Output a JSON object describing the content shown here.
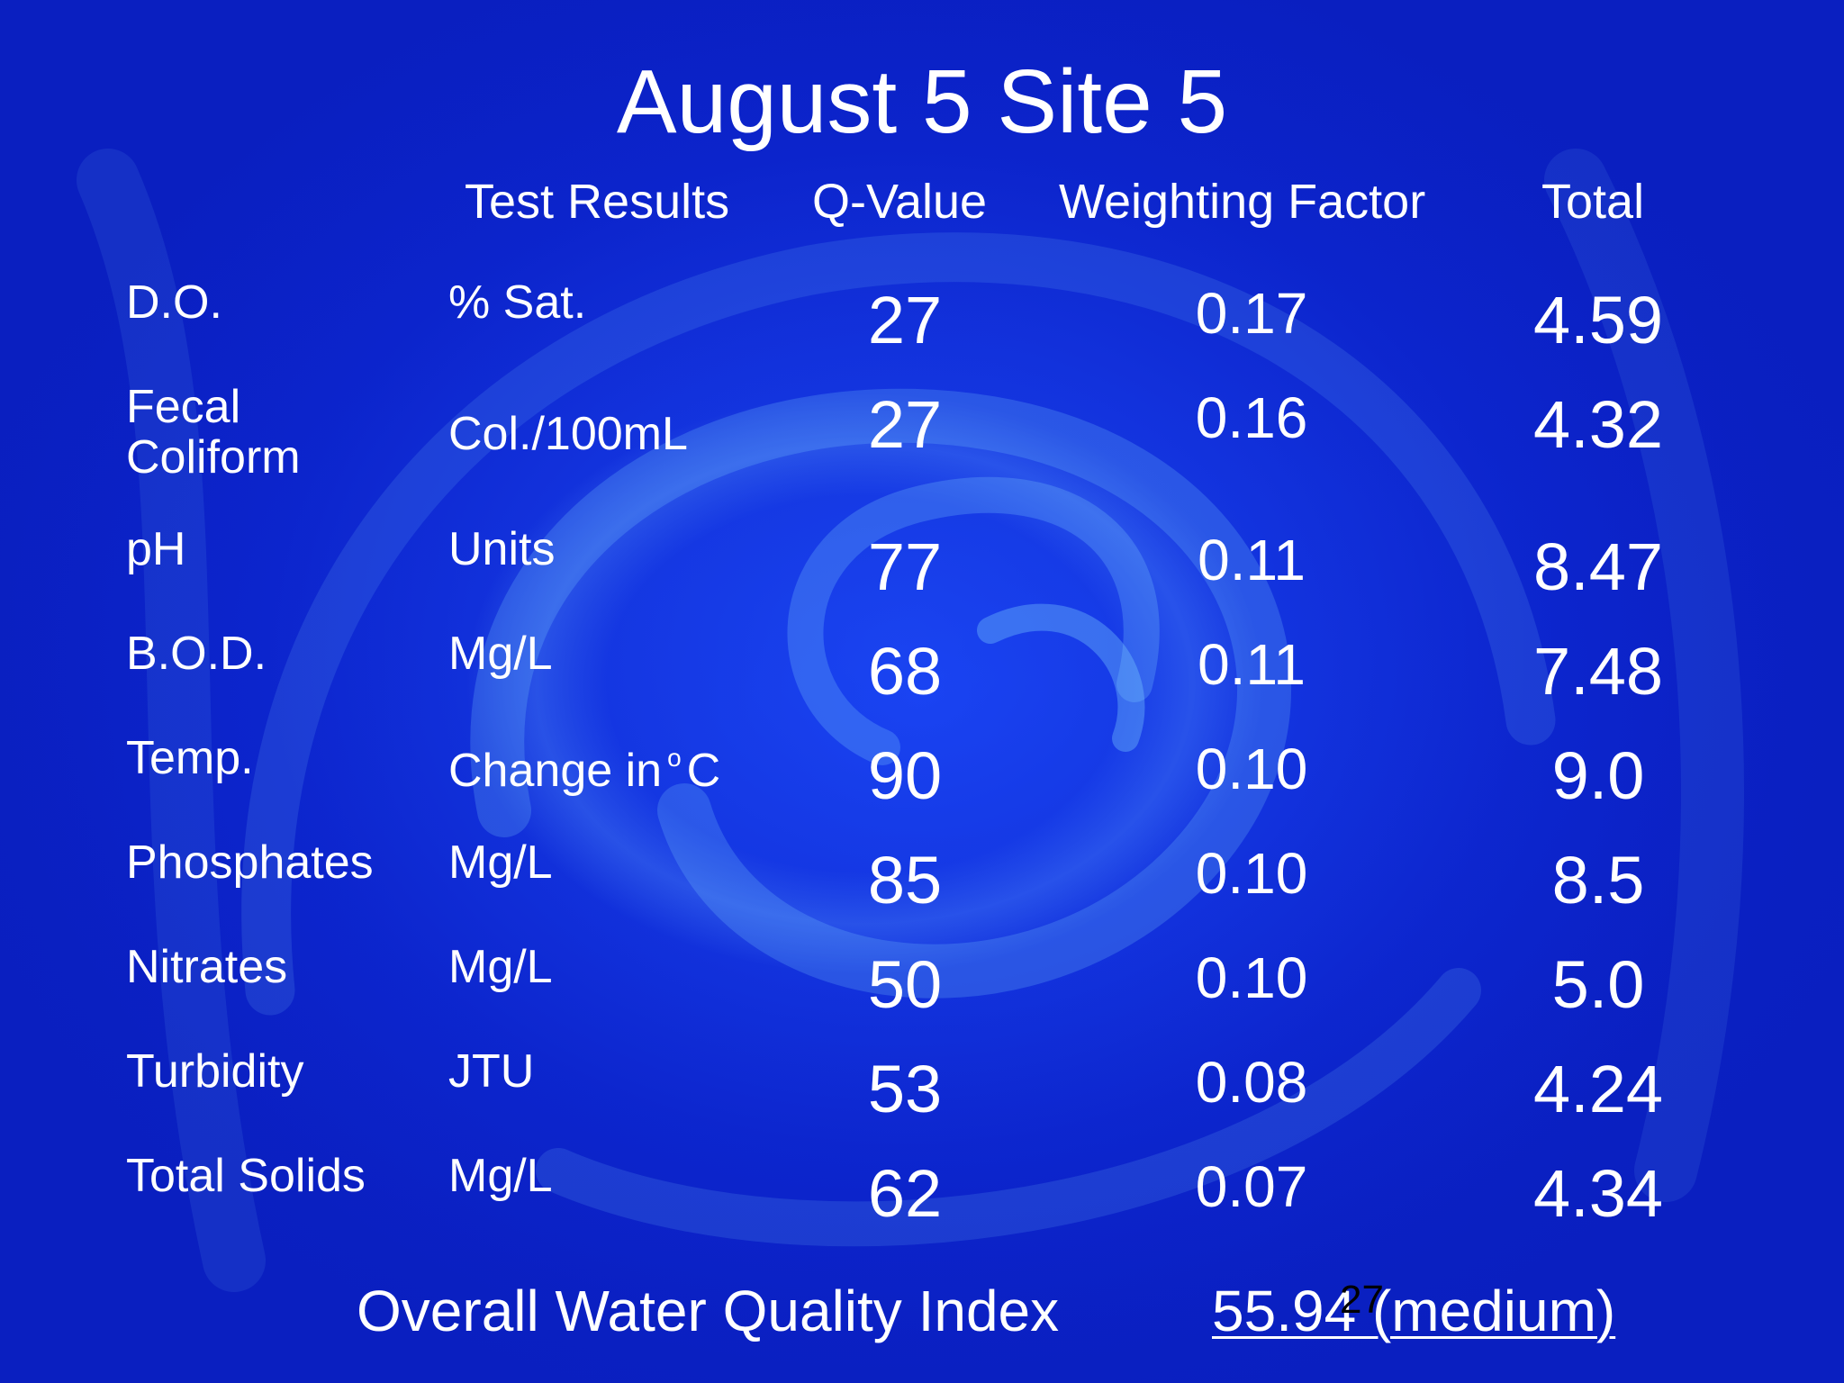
{
  "slide": {
    "title": "August 5 Site 5",
    "headers": {
      "test_results": "Test Results",
      "q_value": "Q-Value",
      "weighting_factor": "Weighting Factor",
      "total": "Total"
    },
    "rows": [
      {
        "parameter": "D.O.",
        "unit": "% Sat.",
        "q_value": "27",
        "weighting": "0.17",
        "total": "4.59"
      },
      {
        "parameter": "Fecal Coliform",
        "unit": "Col./100mL",
        "q_value": "27",
        "weighting": "0.16",
        "total": "4.32"
      },
      {
        "parameter": "pH",
        "unit": "Units",
        "q_value": "77",
        "weighting": "0.11",
        "total": "8.47"
      },
      {
        "parameter": "B.O.D.",
        "unit": "Mg/L",
        "q_value": "68",
        "weighting": "0.11",
        "total": "7.48"
      },
      {
        "parameter": "Temp.",
        "unit_prefix": "Change in",
        "unit_sup": "o",
        "unit_suffix": "C",
        "q_value": "90",
        "weighting": "0.10",
        "total": "9.0"
      },
      {
        "parameter": "Phosphates",
        "unit": "Mg/L",
        "q_value": "85",
        "weighting": "0.10",
        "total": "8.5"
      },
      {
        "parameter": "Nitrates",
        "unit": "Mg/L",
        "q_value": "50",
        "weighting": "0.10",
        "total": "5.0"
      },
      {
        "parameter": "Turbidity",
        "unit": "JTU",
        "q_value": "53",
        "weighting": "0.08",
        "total": "4.24"
      },
      {
        "parameter": "Total Solids",
        "unit": "Mg/L",
        "q_value": "62",
        "weighting": "0.07",
        "total": "4.34"
      }
    ],
    "overall_label": "Overall Water Quality Index",
    "overall_value": "55.94 (medium)",
    "page_number": "27"
  },
  "colors": {
    "background": "#1230d8",
    "text": "#ffffff",
    "page_number": "#000000"
  }
}
